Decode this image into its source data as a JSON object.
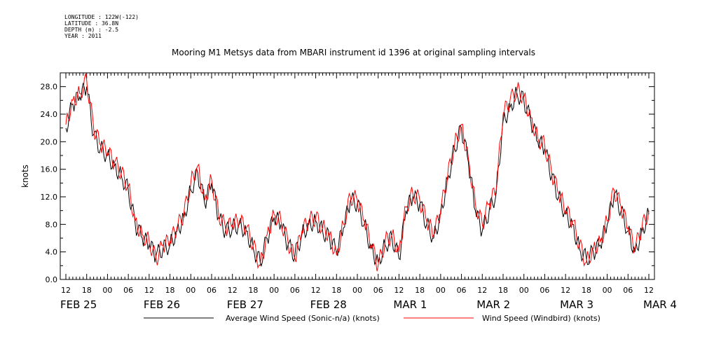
{
  "header": {
    "meta_lines": [
      "LONGITUDE : 122W(-122)",
      "LATITUDE : 36.8N",
      "DEPTH (m) : -2.5",
      "YEAR : 2011"
    ],
    "title": "Mooring M1 Metsys data from MBARI instrument id 1396 at original sampling intervals"
  },
  "chart_data": {
    "type": "line",
    "title": "Mooring M1 Metsys data from MBARI instrument id 1396 at original sampling intervals",
    "ylabel": "knots",
    "xlabel": "",
    "ylim": [
      0,
      30
    ],
    "y_ticks": [
      "0.0",
      "4.0",
      "8.0",
      "12.0",
      "16.0",
      "20.0",
      "24.0",
      "28.0"
    ],
    "x_range_hours": [
      "2011-02-25 12:00",
      "2011-03-04 12:00"
    ],
    "x_hour_ticks": [
      "12",
      "18",
      "00",
      "06",
      "12",
      "18",
      "00",
      "06",
      "12",
      "18",
      "00",
      "06",
      "12",
      "18",
      "00",
      "06",
      "12",
      "18",
      "00",
      "06",
      "12",
      "18",
      "00",
      "06",
      "12",
      "18",
      "00",
      "06",
      "12"
    ],
    "date_labels": [
      "FEB 25",
      "FEB 26",
      "FEB 27",
      "FEB 28",
      "MAR  1",
      "MAR  2",
      "MAR  3",
      "MAR  4"
    ],
    "grid": false,
    "legend_position": "bottom",
    "series": [
      {
        "name": "Average Wind Speed (Sonic-n/a) (knots)",
        "color": "#000000",
        "x": [
          "2011-02-25 12:00",
          "2011-02-25 14:00",
          "2011-02-25 16:00",
          "2011-02-25 18:00",
          "2011-02-25 20:00",
          "2011-02-25 22:00",
          "2011-02-26 00:00",
          "2011-02-26 02:00",
          "2011-02-26 04:00",
          "2011-02-26 06:00",
          "2011-02-26 08:00",
          "2011-02-26 10:00",
          "2011-02-26 12:00",
          "2011-02-26 14:00",
          "2011-02-26 16:00",
          "2011-02-26 18:00",
          "2011-02-26 20:00",
          "2011-02-26 22:00",
          "2011-02-27 00:00",
          "2011-02-27 02:00",
          "2011-02-27 04:00",
          "2011-02-27 06:00",
          "2011-02-27 08:00",
          "2011-02-27 10:00",
          "2011-02-27 12:00",
          "2011-02-27 14:00",
          "2011-02-27 16:00",
          "2011-02-27 18:00",
          "2011-02-27 20:00",
          "2011-02-27 22:00",
          "2011-02-28 00:00",
          "2011-02-28 02:00",
          "2011-02-28 04:00",
          "2011-02-28 06:00",
          "2011-02-28 08:00",
          "2011-02-28 10:00",
          "2011-02-28 12:00",
          "2011-02-28 14:00",
          "2011-02-28 16:00",
          "2011-02-28 18:00",
          "2011-02-28 20:00",
          "2011-02-28 22:00",
          "2011-03-01 00:00",
          "2011-03-01 02:00",
          "2011-03-01 04:00",
          "2011-03-01 06:00",
          "2011-03-01 08:00",
          "2011-03-01 10:00",
          "2011-03-01 12:00",
          "2011-03-01 14:00",
          "2011-03-01 16:00",
          "2011-03-01 18:00",
          "2011-03-01 20:00",
          "2011-03-01 22:00",
          "2011-03-02 00:00",
          "2011-03-02 02:00",
          "2011-03-02 04:00",
          "2011-03-02 06:00",
          "2011-03-02 08:00",
          "2011-03-02 10:00",
          "2011-03-02 12:00",
          "2011-03-02 14:00",
          "2011-03-02 16:00",
          "2011-03-02 18:00",
          "2011-03-02 20:00",
          "2011-03-02 22:00",
          "2011-03-03 00:00",
          "2011-03-03 02:00",
          "2011-03-03 04:00",
          "2011-03-03 06:00",
          "2011-03-03 08:00",
          "2011-03-03 10:00",
          "2011-03-03 12:00",
          "2011-03-03 14:00",
          "2011-03-03 16:00",
          "2011-03-03 18:00",
          "2011-03-03 20:00",
          "2011-03-03 22:00",
          "2011-03-04 00:00",
          "2011-03-04 02:00",
          "2011-03-04 04:00",
          "2011-03-04 06:00",
          "2011-03-04 08:00",
          "2011-03-04 10:00",
          "2011-03-04 12:00"
        ],
        "values": [
          22.0,
          25.5,
          26.5,
          28.0,
          21.0,
          19.0,
          18.0,
          16.5,
          15.0,
          13.0,
          8.0,
          6.0,
          5.0,
          3.5,
          4.5,
          5.0,
          7.0,
          9.0,
          13.0,
          15.5,
          11.0,
          14.0,
          9.0,
          7.0,
          7.5,
          8.0,
          7.0,
          4.5,
          2.5,
          6.0,
          9.0,
          8.0,
          5.0,
          3.5,
          6.5,
          8.0,
          8.5,
          7.0,
          6.0,
          4.0,
          7.5,
          11.5,
          11.0,
          8.0,
          4.5,
          2.5,
          5.0,
          6.0,
          3.0,
          10.0,
          12.0,
          11.0,
          8.0,
          6.0,
          9.5,
          14.5,
          19.0,
          22.0,
          17.0,
          10.0,
          7.0,
          10.0,
          12.5,
          23.0,
          25.0,
          27.0,
          26.0,
          23.0,
          20.0,
          19.0,
          15.0,
          12.0,
          9.5,
          8.0,
          4.5,
          3.0,
          4.0,
          5.0,
          8.0,
          12.5,
          10.0,
          7.0,
          4.0,
          7.0,
          9.5
        ]
      },
      {
        "name": "Wind Speed (Windbird) (knots)",
        "color": "#ff0000",
        "x": [
          "2011-02-25 12:00",
          "2011-02-25 14:00",
          "2011-02-25 16:00",
          "2011-02-25 18:00",
          "2011-02-25 20:00",
          "2011-02-25 22:00",
          "2011-02-26 00:00",
          "2011-02-26 02:00",
          "2011-02-26 04:00",
          "2011-02-26 06:00",
          "2011-02-26 08:00",
          "2011-02-26 10:00",
          "2011-02-26 12:00",
          "2011-02-26 14:00",
          "2011-02-26 16:00",
          "2011-02-26 18:00",
          "2011-02-26 20:00",
          "2011-02-26 22:00",
          "2011-02-27 00:00",
          "2011-02-27 02:00",
          "2011-02-27 04:00",
          "2011-02-27 06:00",
          "2011-02-27 08:00",
          "2011-02-27 10:00",
          "2011-02-27 12:00",
          "2011-02-27 14:00",
          "2011-02-27 16:00",
          "2011-02-27 18:00",
          "2011-02-27 20:00",
          "2011-02-27 22:00",
          "2011-02-28 00:00",
          "2011-02-28 02:00",
          "2011-02-28 04:00",
          "2011-02-28 06:00",
          "2011-02-28 08:00",
          "2011-02-28 10:00",
          "2011-02-28 12:00",
          "2011-02-28 14:00",
          "2011-02-28 16:00",
          "2011-02-28 18:00",
          "2011-02-28 20:00",
          "2011-02-28 22:00",
          "2011-03-01 00:00",
          "2011-03-01 02:00",
          "2011-03-01 04:00",
          "2011-03-01 06:00",
          "2011-03-01 08:00",
          "2011-03-01 10:00",
          "2011-03-01 12:00",
          "2011-03-01 14:00",
          "2011-03-01 16:00",
          "2011-03-01 18:00",
          "2011-03-01 20:00",
          "2011-03-01 22:00",
          "2011-03-02 00:00",
          "2011-03-02 02:00",
          "2011-03-02 04:00",
          "2011-03-02 06:00",
          "2011-03-02 08:00",
          "2011-03-02 10:00",
          "2011-03-02 12:00",
          "2011-03-02 14:00",
          "2011-03-02 16:00",
          "2011-03-02 18:00",
          "2011-03-02 20:00",
          "2011-03-02 22:00",
          "2011-03-03 00:00",
          "2011-03-03 02:00",
          "2011-03-03 04:00",
          "2011-03-03 06:00",
          "2011-03-03 08:00",
          "2011-03-03 10:00",
          "2011-03-03 12:00",
          "2011-03-03 14:00",
          "2011-03-03 16:00",
          "2011-03-03 18:00",
          "2011-03-03 20:00",
          "2011-03-03 22:00",
          "2011-03-04 00:00",
          "2011-03-04 02:00",
          "2011-03-04 04:00",
          "2011-03-04 06:00",
          "2011-03-04 08:00",
          "2011-03-04 10:00",
          "2011-03-04 12:00"
        ],
        "values": [
          22.5,
          26.0,
          27.0,
          29.0,
          22.0,
          19.5,
          18.5,
          17.0,
          15.5,
          13.5,
          8.5,
          6.5,
          5.5,
          3.0,
          5.0,
          5.5,
          7.5,
          9.5,
          14.0,
          16.5,
          11.5,
          14.5,
          9.5,
          7.5,
          8.0,
          8.5,
          7.5,
          5.0,
          2.0,
          6.5,
          9.5,
          8.5,
          5.5,
          3.0,
          7.0,
          8.5,
          9.0,
          7.5,
          6.5,
          3.5,
          8.0,
          12.0,
          11.5,
          8.5,
          5.0,
          2.0,
          5.5,
          6.5,
          4.0,
          10.5,
          12.5,
          11.5,
          8.5,
          6.5,
          10.0,
          15.0,
          19.5,
          22.5,
          17.5,
          11.0,
          8.0,
          11.0,
          13.0,
          24.0,
          26.0,
          27.5,
          26.5,
          23.5,
          20.5,
          19.5,
          15.5,
          12.5,
          10.0,
          8.5,
          5.0,
          2.5,
          4.5,
          5.5,
          8.5,
          13.0,
          10.5,
          7.5,
          4.5,
          7.5,
          10.0
        ]
      }
    ]
  }
}
